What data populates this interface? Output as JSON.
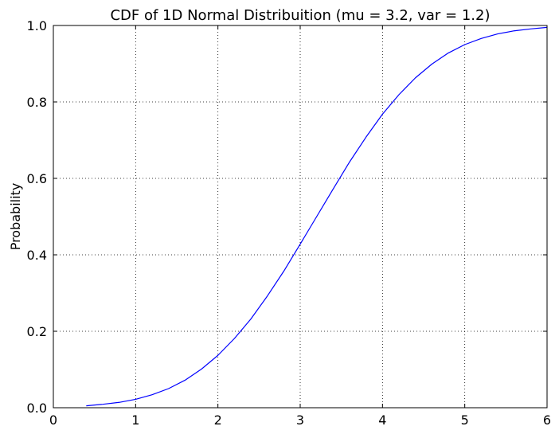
{
  "chart_data": {
    "type": "line",
    "title": "CDF of 1D Normal Distribuition (mu = 3.2, var = 1.2)",
    "xlabel": "",
    "ylabel": "Probability",
    "xlim": [
      0,
      6
    ],
    "ylim": [
      0,
      1
    ],
    "xticks": [
      0,
      1,
      2,
      3,
      4,
      5,
      6
    ],
    "xtick_labels": [
      "0",
      "1",
      "2",
      "3",
      "4",
      "5",
      "6"
    ],
    "yticks": [
      0,
      0.2,
      0.4,
      0.6,
      0.8,
      1
    ],
    "ytick_labels": [
      "0.0",
      "0.2",
      "0.4",
      "0.6",
      "0.8",
      "1.0"
    ],
    "grid": true,
    "legend": "none",
    "series": [
      {
        "color": "#0000ff",
        "x": [
          0.4,
          0.6,
          0.8,
          1.0,
          1.2,
          1.4,
          1.6,
          1.8,
          2.0,
          2.2,
          2.4,
          2.6,
          2.8,
          3.0,
          3.2,
          3.4,
          3.6,
          3.8,
          4.0,
          4.2,
          4.4,
          4.6,
          4.8,
          5.0,
          5.2,
          5.4,
          5.6,
          5.8,
          6.0
        ],
        "y": [
          0.005,
          0.009,
          0.014,
          0.022,
          0.034,
          0.05,
          0.072,
          0.101,
          0.137,
          0.181,
          0.232,
          0.292,
          0.357,
          0.428,
          0.5,
          0.572,
          0.643,
          0.708,
          0.768,
          0.819,
          0.863,
          0.899,
          0.928,
          0.95,
          0.966,
          0.978,
          0.986,
          0.991,
          0.995
        ]
      }
    ]
  }
}
